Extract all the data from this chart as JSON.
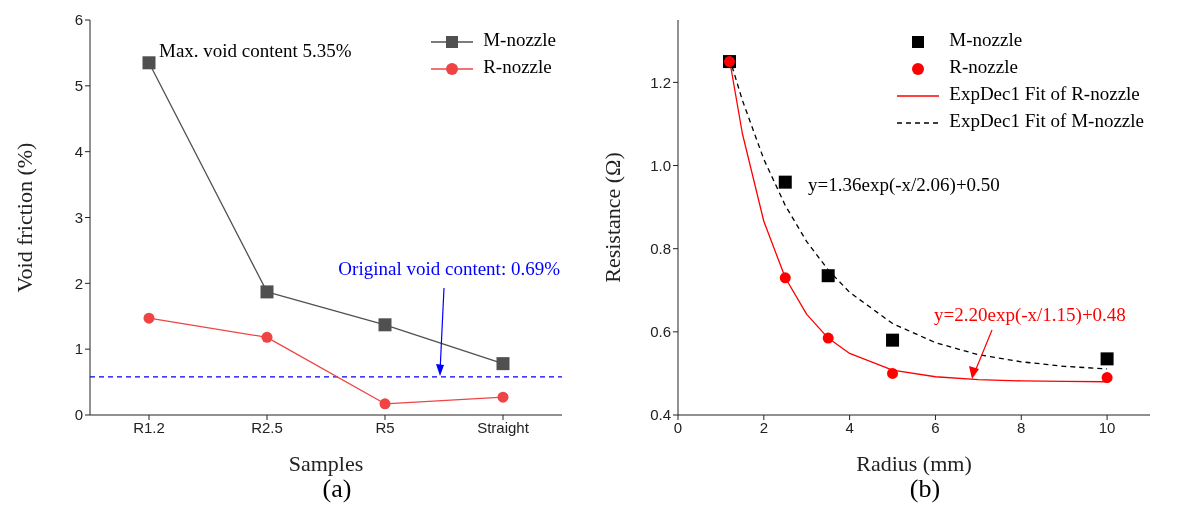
{
  "chart_data": [
    {
      "type": "line",
      "xlabel": "Samples",
      "ylabel": "Void friction (%)",
      "categories": [
        "R1.2",
        "R2.5",
        "R5",
        "Straight"
      ],
      "ylim": [
        0,
        6
      ],
      "yticks": [
        0,
        1,
        2,
        3,
        4,
        5,
        6
      ],
      "grid": false,
      "legend": "top right",
      "series": [
        {
          "name": "M-nozzle",
          "color": "#505050",
          "marker": "square",
          "values": [
            5.35,
            1.87,
            1.37,
            0.78
          ]
        },
        {
          "name": "R-nozzle",
          "color": "#ee4444",
          "marker": "circle",
          "values": [
            1.47,
            1.18,
            0.17,
            0.27
          ]
        }
      ],
      "ref_lines": [
        {
          "axis": "y",
          "value": 0.58,
          "color": "#0000ff",
          "line_style": "dashed"
        }
      ],
      "annotations": [
        {
          "text": "Max. void content 5.35%",
          "x": "R1.2",
          "y": 5.35
        },
        "Original void content: 0.69%",
        "(a)"
      ]
    },
    {
      "type": "scatter",
      "xlabel": "Radius (mm)",
      "ylabel": "Resistance (Ω)",
      "xlim": [
        0,
        11
      ],
      "xticks": [
        0,
        2,
        4,
        6,
        8,
        10
      ],
      "ylim": [
        0.4,
        1.35
      ],
      "yticks": [
        0.4,
        0.6,
        0.8,
        {
          "value": 1.0,
          "label": "1.0"
        },
        1.2
      ],
      "grid": false,
      "legend": "top right",
      "series": [
        {
          "name": "M-nozzle",
          "color": "#000000",
          "marker": "square",
          "x": [
            1.2,
            2.5,
            3.5,
            5,
            10
          ],
          "values": [
            1.25,
            0.96,
            0.735,
            0.58,
            0.535
          ]
        },
        {
          "name": "R-nozzle",
          "color": "#ff0000",
          "marker": "circle",
          "x": [
            1.2,
            2.5,
            3.5,
            5,
            10
          ],
          "values": [
            1.25,
            0.73,
            0.585,
            0.5,
            0.49
          ]
        },
        {
          "name": "ExpDec1 Fit of R-nozzle",
          "type": "line",
          "color": "#ff0000",
          "marker": "none",
          "line_style": "solid",
          "x": [
            1.2,
            1.5,
            2,
            2.5,
            3,
            3.5,
            4,
            5,
            6,
            7,
            8,
            9,
            10
          ],
          "values": [
            1.255,
            1.077,
            0.866,
            0.73,
            0.642,
            0.585,
            0.548,
            0.508,
            0.492,
            0.485,
            0.482,
            0.481,
            0.48
          ]
        },
        {
          "name": "ExpDec1 Fit of M-nozzle",
          "type": "line",
          "color": "#000000",
          "marker": "none",
          "line_style": "dashed",
          "x": [
            1.2,
            1.5,
            2,
            2.5,
            3,
            3.5,
            4,
            5,
            6,
            7,
            8,
            9,
            10
          ],
          "values": [
            1.259,
            1.157,
            1.015,
            0.904,
            0.817,
            0.749,
            0.695,
            0.62,
            0.574,
            0.545,
            0.528,
            0.517,
            0.511
          ]
        }
      ],
      "annotations": [
        "y=1.36exp(-x/2.06)+0.50",
        "y=2.20exp(-x/1.15)+0.48",
        "(b)"
      ]
    }
  ]
}
